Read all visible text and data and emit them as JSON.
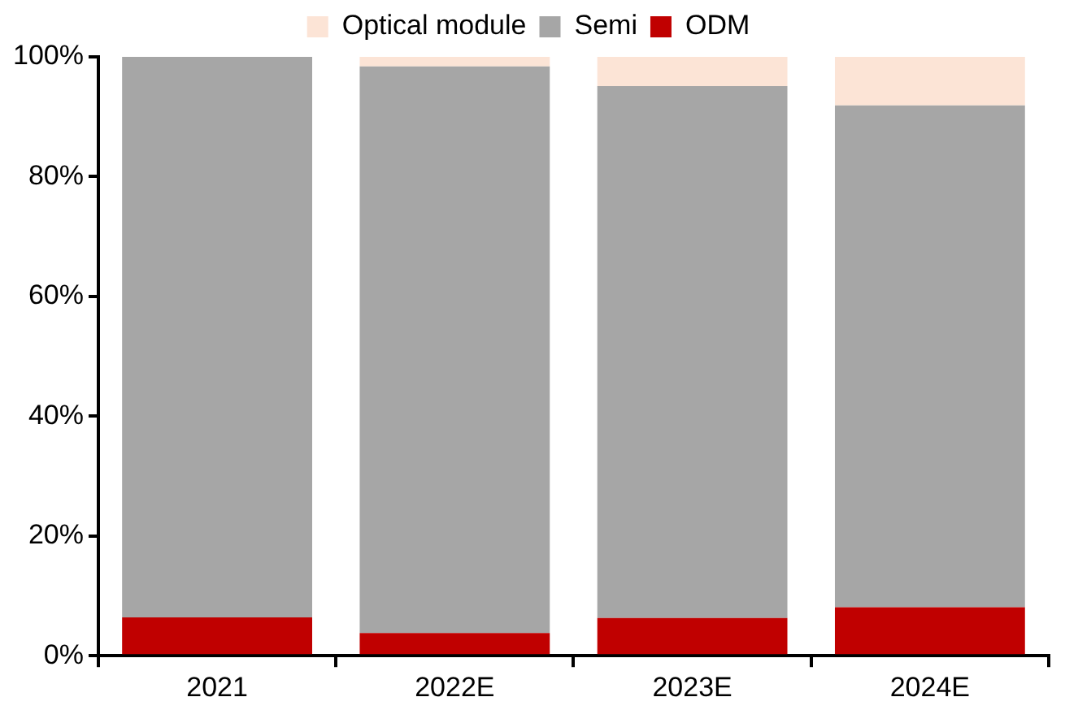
{
  "chart_data": {
    "type": "bar",
    "stacked": true,
    "categories": [
      "2021",
      "2022E",
      "2023E",
      "2024E"
    ],
    "series": [
      {
        "name": "ODM",
        "color": "#c00000",
        "values": [
          6.4,
          3.8,
          6.3,
          8.1
        ]
      },
      {
        "name": "Semi",
        "color": "#a6a6a6",
        "values": [
          93.6,
          94.6,
          88.8,
          83.8
        ]
      },
      {
        "name": "Optical module",
        "color": "#fce4d6",
        "values": [
          0,
          1.6,
          4.9,
          8.1
        ]
      }
    ],
    "ylim": [
      0,
      100
    ],
    "yticks": [
      {
        "value": 0,
        "label": "0%"
      },
      {
        "value": 20,
        "label": "20%"
      },
      {
        "value": 40,
        "label": "40%"
      },
      {
        "value": 60,
        "label": "60%"
      },
      {
        "value": 80,
        "label": "80%"
      },
      {
        "value": 100,
        "label": "100%"
      }
    ],
    "grid": false,
    "legend": "top"
  }
}
